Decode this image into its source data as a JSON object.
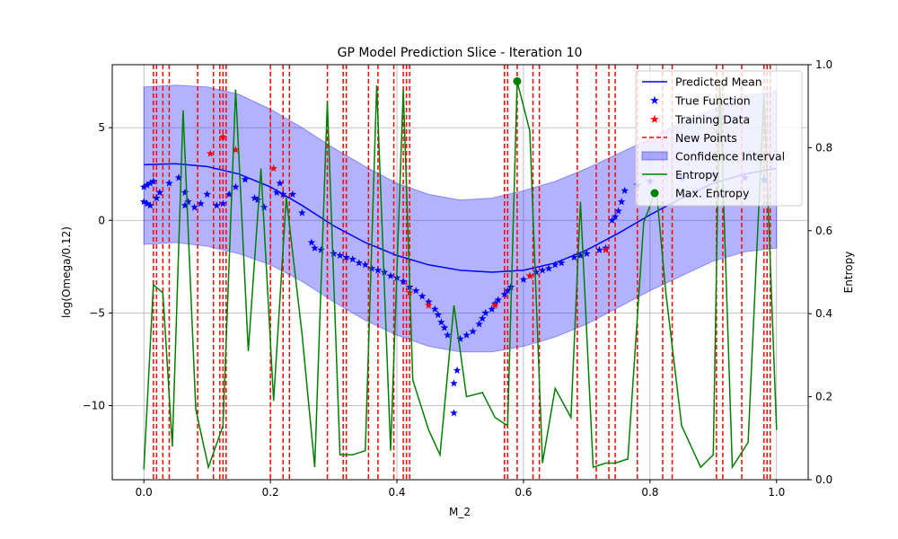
{
  "chart_data": {
    "type": "line",
    "title": "GP Model Prediction Slice - Iteration 10",
    "xlabel": "M_2",
    "ylabel": "log(Omega/0.12)",
    "y2label": "Entropy",
    "xlim": [
      -0.05,
      1.05
    ],
    "ylim": [
      -14.0,
      8.4
    ],
    "y2lim": [
      0.0,
      1.0
    ],
    "xticks": [
      "0.0",
      "0.2",
      "0.4",
      "0.6",
      "0.8",
      "1.0"
    ],
    "yticks": [
      "−10",
      "−5",
      "0",
      "5"
    ],
    "y2ticks": [
      "0.0",
      "0.2",
      "0.4",
      "0.6",
      "0.8",
      "1.0"
    ],
    "grid": true,
    "legend_position": "top-right",
    "legend": {
      "predicted_mean": "Predicted Mean",
      "true_function": "True Function",
      "training_data": "Training Data",
      "new_points": "New Points",
      "confidence_interval": "Confidence Interval",
      "entropy": "Entropy",
      "max_entropy": "Max. Entropy"
    },
    "colors": {
      "mean": "#0000ff",
      "true": "#0000ff",
      "training": "#ff0000",
      "new_points": "#ff0000",
      "confidence": "#0000ff",
      "entropy": "#008000",
      "max_entropy": "#008000"
    },
    "predicted_mean": {
      "x": [
        0.0,
        0.05,
        0.1,
        0.15,
        0.2,
        0.25,
        0.3,
        0.35,
        0.4,
        0.45,
        0.5,
        0.55,
        0.6,
        0.65,
        0.7,
        0.75,
        0.8,
        0.85,
        0.9,
        0.95,
        1.0
      ],
      "y": [
        3.0,
        3.05,
        2.9,
        2.5,
        1.8,
        0.8,
        -0.3,
        -1.2,
        -1.9,
        -2.4,
        -2.7,
        -2.8,
        -2.7,
        -2.3,
        -1.6,
        -0.7,
        0.3,
        1.2,
        2.0,
        2.5,
        2.8
      ]
    },
    "confidence_interval": {
      "x": [
        0.0,
        0.05,
        0.1,
        0.15,
        0.2,
        0.25,
        0.3,
        0.35,
        0.4,
        0.45,
        0.5,
        0.55,
        0.6,
        0.65,
        0.7,
        0.75,
        0.8,
        0.85,
        0.9,
        0.95,
        1.0
      ],
      "upper": [
        7.2,
        7.3,
        7.2,
        6.8,
        6.0,
        5.0,
        3.9,
        2.9,
        2.0,
        1.4,
        1.1,
        1.2,
        1.6,
        2.1,
        2.8,
        3.6,
        4.4,
        5.3,
        6.0,
        6.7,
        7.0
      ],
      "lower": [
        -1.3,
        -1.2,
        -1.4,
        -1.8,
        -2.4,
        -3.3,
        -4.4,
        -5.4,
        -6.2,
        -6.8,
        -7.1,
        -7.1,
        -6.8,
        -6.3,
        -5.6,
        -4.7,
        -3.8,
        -3.0,
        -2.2,
        -1.7,
        -1.5
      ]
    },
    "true_function": {
      "x": [
        0.0,
        0.005,
        0.01,
        0.015,
        0.0,
        0.005,
        0.01,
        0.02,
        0.025,
        0.04,
        0.055,
        0.065,
        0.07,
        0.065,
        0.08,
        0.09,
        0.1,
        0.115,
        0.125,
        0.135,
        0.145,
        0.16,
        0.175,
        0.18,
        0.19,
        0.21,
        0.215,
        0.22,
        0.235,
        0.25,
        0.265,
        0.27,
        0.28,
        0.3,
        0.31,
        0.32,
        0.33,
        0.34,
        0.35,
        0.36,
        0.37,
        0.38,
        0.39,
        0.4,
        0.41,
        0.42,
        0.43,
        0.44,
        0.45,
        0.46,
        0.465,
        0.47,
        0.475,
        0.48,
        0.49,
        0.49,
        0.495,
        0.5,
        0.51,
        0.52,
        0.53,
        0.535,
        0.54,
        0.55,
        0.555,
        0.56,
        0.57,
        0.575,
        0.58,
        0.6,
        0.61,
        0.62,
        0.63,
        0.64,
        0.65,
        0.66,
        0.68,
        0.69,
        0.7,
        0.72,
        0.73,
        0.74,
        0.745,
        0.75,
        0.755,
        0.76,
        0.78,
        0.8,
        0.85,
        0.9,
        0.95,
        0.98
      ],
      "y": [
        1.8,
        1.9,
        2.0,
        2.1,
        1.0,
        0.9,
        0.8,
        1.2,
        1.5,
        2.0,
        2.3,
        1.5,
        1.0,
        0.8,
        0.7,
        0.9,
        1.4,
        0.8,
        0.9,
        1.4,
        1.8,
        2.2,
        1.2,
        1.1,
        0.7,
        1.5,
        2.0,
        1.4,
        1.4,
        0.4,
        -1.2,
        -1.5,
        -1.6,
        -1.8,
        -1.9,
        -2.0,
        -2.1,
        -2.3,
        -2.4,
        -2.6,
        -2.7,
        -2.8,
        -3.0,
        -3.1,
        -3.3,
        -3.6,
        -3.8,
        -4.1,
        -4.4,
        -4.8,
        -5.1,
        -5.5,
        -5.8,
        -6.2,
        -8.8,
        -10.4,
        -8.1,
        -6.4,
        -6.2,
        -6.0,
        -5.6,
        -5.3,
        -5.0,
        -4.8,
        -4.5,
        -4.3,
        -4.0,
        -3.8,
        -3.6,
        -3.2,
        -3.0,
        -2.8,
        -2.7,
        -2.6,
        -2.4,
        -2.3,
        -2.0,
        -1.9,
        -1.8,
        -1.6,
        -1.5,
        0.0,
        0.2,
        0.5,
        1.0,
        1.6,
        1.9,
        2.1,
        2.3,
        2.5,
        2.3,
        2.2
      ]
    },
    "training_data": {
      "x": [
        0.105,
        0.125,
        0.145,
        0.205,
        0.42,
        0.45,
        0.555,
        0.61,
        0.73
      ],
      "y": [
        3.6,
        4.5,
        3.8,
        2.8,
        -3.9,
        -4.6,
        -4.6,
        -3.0,
        -1.6
      ]
    },
    "new_points_x": [
      0.015,
      0.02,
      0.03,
      0.04,
      0.085,
      0.11,
      0.12,
      0.125,
      0.13,
      0.2,
      0.22,
      0.23,
      0.29,
      0.315,
      0.32,
      0.355,
      0.37,
      0.395,
      0.41,
      0.415,
      0.42,
      0.57,
      0.575,
      0.59,
      0.615,
      0.625,
      0.685,
      0.715,
      0.735,
      0.745,
      0.78,
      0.82,
      0.835,
      0.905,
      0.915,
      0.945,
      0.98,
      0.985,
      0.99
    ],
    "entropy": {
      "x": [
        0.0,
        0.015,
        0.03,
        0.045,
        0.062,
        0.082,
        0.102,
        0.125,
        0.145,
        0.165,
        0.185,
        0.205,
        0.225,
        0.25,
        0.27,
        0.29,
        0.31,
        0.33,
        0.35,
        0.368,
        0.39,
        0.41,
        0.425,
        0.45,
        0.468,
        0.49,
        0.51,
        0.535,
        0.555,
        0.575,
        0.59,
        0.61,
        0.63,
        0.65,
        0.675,
        0.69,
        0.71,
        0.73,
        0.745,
        0.765,
        0.79,
        0.81,
        0.825,
        0.85,
        0.88,
        0.9,
        0.91,
        0.93,
        0.955,
        0.98,
        1.0
      ],
      "y": [
        0.025,
        0.47,
        0.45,
        0.08,
        0.89,
        0.17,
        0.03,
        0.13,
        0.94,
        0.31,
        0.75,
        0.19,
        0.68,
        0.35,
        0.03,
        0.91,
        0.06,
        0.06,
        0.07,
        0.95,
        0.07,
        0.94,
        0.24,
        0.12,
        0.06,
        0.42,
        0.2,
        0.21,
        0.15,
        0.13,
        0.96,
        0.84,
        0.04,
        0.22,
        0.15,
        0.67,
        0.03,
        0.04,
        0.04,
        0.05,
        0.62,
        0.7,
        0.45,
        0.13,
        0.03,
        0.06,
        0.96,
        0.03,
        0.09,
        0.93,
        0.12
      ]
    },
    "max_entropy": {
      "x": 0.59,
      "y": 0.96
    }
  }
}
